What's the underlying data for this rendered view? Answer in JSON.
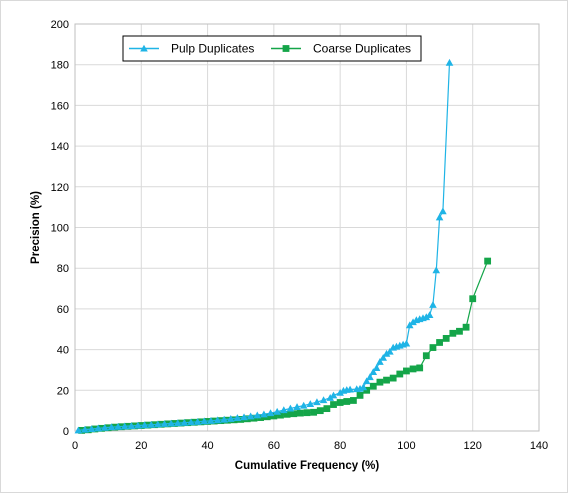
{
  "chart_data": {
    "type": "line",
    "title": "",
    "xlabel": "Cumulative Frequency (%)",
    "ylabel": "Precision (%)",
    "xlim": [
      0,
      140
    ],
    "ylim": [
      0,
      200
    ],
    "xticks": [
      "0",
      "20",
      "40",
      "60",
      "80",
      "100",
      "120",
      "140"
    ],
    "yticks": [
      "0",
      "20",
      "40",
      "60",
      "80",
      "100",
      "120",
      "140",
      "160",
      "180",
      "200"
    ],
    "grid": true,
    "legend_position": "top-left",
    "series": [
      {
        "name": "Pulp Duplicates",
        "color": "#1fb4e6",
        "marker": "triangle",
        "points": [
          [
            1,
            0.3
          ],
          [
            3,
            0.7
          ],
          [
            5,
            1.0
          ],
          [
            7,
            1.3
          ],
          [
            9,
            1.6
          ],
          [
            11,
            1.9
          ],
          [
            13,
            2.1
          ],
          [
            15,
            2.3
          ],
          [
            17,
            2.5
          ],
          [
            19,
            2.7
          ],
          [
            21,
            2.9
          ],
          [
            23,
            3.1
          ],
          [
            25,
            3.3
          ],
          [
            27,
            3.5
          ],
          [
            29,
            3.7
          ],
          [
            31,
            3.9
          ],
          [
            33,
            4.1
          ],
          [
            35,
            4.3
          ],
          [
            37,
            4.5
          ],
          [
            39,
            4.8
          ],
          [
            41,
            5.0
          ],
          [
            43,
            5.3
          ],
          [
            45,
            5.6
          ],
          [
            47,
            6.0
          ],
          [
            49,
            6.4
          ],
          [
            51,
            6.8
          ],
          [
            53,
            7.2
          ],
          [
            55,
            7.7
          ],
          [
            57,
            8.2
          ],
          [
            59,
            8.8
          ],
          [
            61,
            9.5
          ],
          [
            63,
            10.3
          ],
          [
            65,
            11.1
          ],
          [
            67,
            11.8
          ],
          [
            69,
            12.5
          ],
          [
            71,
            13.3
          ],
          [
            73,
            14.2
          ],
          [
            75,
            15.2
          ],
          [
            77,
            16.3
          ],
          [
            78,
            17.5
          ],
          [
            80,
            18.8
          ],
          [
            81,
            19.8
          ],
          [
            82,
            20.2
          ],
          [
            83,
            20.4
          ],
          [
            85,
            20.6
          ],
          [
            86,
            20.8
          ],
          [
            87,
            21.5
          ],
          [
            88,
            24.5
          ],
          [
            89,
            26.5
          ],
          [
            90,
            29.0
          ],
          [
            91,
            31.0
          ],
          [
            92,
            34.0
          ],
          [
            93,
            36.0
          ],
          [
            94,
            38.0
          ],
          [
            95,
            39.0
          ],
          [
            96,
            41.0
          ],
          [
            97,
            41.5
          ],
          [
            98,
            42.0
          ],
          [
            99,
            42.5
          ],
          [
            100,
            43.0
          ],
          [
            101,
            52.0
          ],
          [
            102,
            53.5
          ],
          [
            103,
            54.5
          ],
          [
            104,
            55.0
          ],
          [
            105,
            55.5
          ],
          [
            106,
            56.0
          ],
          [
            107,
            57.0
          ],
          [
            108,
            62.0
          ],
          [
            109,
            79.0
          ],
          [
            110,
            105.0
          ],
          [
            111,
            108.0
          ],
          [
            113,
            181.0
          ]
        ]
      },
      {
        "name": "Coarse Duplicates",
        "color": "#14a549",
        "marker": "square",
        "points": [
          [
            2,
            0.3
          ],
          [
            4,
            0.6
          ],
          [
            6,
            1.0
          ],
          [
            8,
            1.3
          ],
          [
            10,
            1.6
          ],
          [
            12,
            1.9
          ],
          [
            14,
            2.1
          ],
          [
            16,
            2.3
          ],
          [
            18,
            2.5
          ],
          [
            20,
            2.7
          ],
          [
            22,
            2.9
          ],
          [
            24,
            3.1
          ],
          [
            26,
            3.3
          ],
          [
            28,
            3.5
          ],
          [
            30,
            3.7
          ],
          [
            32,
            3.9
          ],
          [
            34,
            4.1
          ],
          [
            36,
            4.3
          ],
          [
            38,
            4.5
          ],
          [
            40,
            4.7
          ],
          [
            42,
            4.9
          ],
          [
            44,
            5.1
          ],
          [
            46,
            5.3
          ],
          [
            48,
            5.5
          ],
          [
            50,
            5.7
          ],
          [
            52,
            6.0
          ],
          [
            54,
            6.3
          ],
          [
            56,
            6.6
          ],
          [
            58,
            7.0
          ],
          [
            60,
            7.4
          ],
          [
            62,
            7.8
          ],
          [
            64,
            8.2
          ],
          [
            66,
            8.5
          ],
          [
            68,
            8.8
          ],
          [
            70,
            9.0
          ],
          [
            72,
            9.2
          ],
          [
            74,
            10.0
          ],
          [
            76,
            11.0
          ],
          [
            78,
            13.0
          ],
          [
            80,
            14.0
          ],
          [
            82,
            14.5
          ],
          [
            84,
            15.0
          ],
          [
            86,
            17.5
          ],
          [
            88,
            20.0
          ],
          [
            90,
            22.0
          ],
          [
            92,
            24.0
          ],
          [
            94,
            25.0
          ],
          [
            96,
            26.0
          ],
          [
            98,
            28.0
          ],
          [
            100,
            29.5
          ],
          [
            102,
            30.5
          ],
          [
            104,
            31.0
          ],
          [
            106,
            37.0
          ],
          [
            108,
            41.0
          ],
          [
            110,
            43.5
          ],
          [
            112,
            45.5
          ],
          [
            114,
            48.0
          ],
          [
            116,
            49.0
          ],
          [
            118,
            51.0
          ],
          [
            120,
            65.0
          ],
          [
            124.5,
            83.5
          ]
        ]
      }
    ]
  }
}
